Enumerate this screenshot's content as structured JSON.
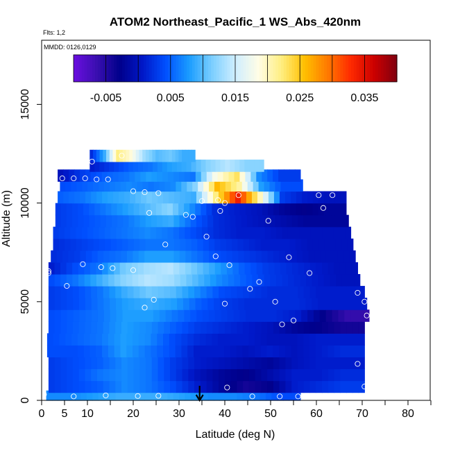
{
  "title": "ATOM2 Northeast_Pacific_1 WS_Abs_420nm",
  "flights_label": "Flts: 1,2",
  "dates_label": "MMDD: 0126,0129",
  "colors": {
    "palette": [
      "#6a0de0",
      "#3a0fb0",
      "#00008b",
      "#0018c8",
      "#0050ff",
      "#1a9cff",
      "#7ccfff",
      "#cfeeff",
      "#fffde6",
      "#ffee80",
      "#ffbf00",
      "#ff7a00",
      "#ff2a00",
      "#cc0000",
      "#800010"
    ]
  },
  "chart_data": {
    "type": "heatmap",
    "title": "ATOM2 Northeast_Pacific_1 WS_Abs_420nm",
    "xlabel": "Latitude (deg N)",
    "ylabel": "Altitude (m)",
    "xlim": [
      0,
      85
    ],
    "ylim": [
      0,
      17500
    ],
    "x_ticks": [
      0,
      5,
      10,
      20,
      30,
      40,
      50,
      60,
      70,
      80
    ],
    "x_tick_labels": [
      "0",
      "5",
      "10",
      "20",
      "30",
      "40",
      "50",
      "60",
      "70",
      "80"
    ],
    "y_ticks": [
      0,
      5000,
      10000,
      15000
    ],
    "y_tick_labels": [
      "0",
      "5000",
      "10000",
      "15000"
    ],
    "colorbar": {
      "range": [
        -0.01,
        0.04
      ],
      "ticks": [
        -0.005,
        0.005,
        0.015,
        0.025,
        0.035
      ],
      "tick_labels": [
        "-0.005",
        "0.005",
        "0.015",
        "0.025",
        "0.035"
      ]
    },
    "marker": {
      "x": 34.5,
      "y": 0,
      "label": "arrow"
    },
    "bands": [
      {
        "alt": 200,
        "x_start": 1.0,
        "x_end": 56.5,
        "values": [
          0.007,
          0.007,
          0.008,
          0.009,
          0.009,
          0.009,
          0.008,
          0.007,
          0.007,
          0.006,
          0.004
        ]
      },
      {
        "alt": 700,
        "x_start": 1.5,
        "x_end": 70.5,
        "values": [
          0.003,
          0.004,
          0.005,
          0.007,
          0.006,
          0.004,
          0.001,
          -0.002,
          -0.004,
          -0.003,
          0.001,
          0.002,
          0.003
        ]
      },
      {
        "alt": 1300,
        "x_start": 1.5,
        "x_end": 70.5,
        "values": [
          0.003,
          0.004,
          0.006,
          0.007,
          0.006,
          0.003,
          0.0,
          -0.002,
          -0.003,
          -0.001,
          0.001,
          0.001,
          0.002
        ]
      },
      {
        "alt": 1900,
        "x_start": 1.5,
        "x_end": 70.5,
        "values": [
          0.003,
          0.004,
          0.005,
          0.007,
          0.006,
          0.003,
          0.001,
          0.0,
          -0.001,
          -0.002,
          0.0,
          0.001,
          0.001
        ]
      },
      {
        "alt": 2500,
        "x_start": 1.2,
        "x_end": 70.5,
        "values": [
          0.004,
          0.004,
          0.005,
          0.008,
          0.006,
          0.004,
          0.001,
          0.001,
          0.0,
          0.001,
          0.0,
          0.001,
          0.002
        ]
      },
      {
        "alt": 3100,
        "x_start": 1.2,
        "x_end": 70.5,
        "values": [
          0.004,
          0.005,
          0.006,
          0.008,
          0.007,
          0.004,
          0.002,
          0.001,
          0.001,
          0.0,
          0.0,
          0.001,
          0.001
        ]
      },
      {
        "alt": 3700,
        "x_start": 1.5,
        "x_end": 70.5,
        "values": [
          0.004,
          0.005,
          0.006,
          0.008,
          0.007,
          0.005,
          0.003,
          0.002,
          0.001,
          0.0,
          -0.002,
          -0.003,
          -0.004
        ]
      },
      {
        "alt": 4300,
        "x_start": 1.5,
        "x_end": 71.5,
        "values": [
          0.004,
          0.005,
          0.006,
          0.008,
          0.008,
          0.006,
          0.004,
          0.003,
          0.002,
          0.002,
          0.001,
          -0.003,
          -0.006
        ]
      },
      {
        "alt": 4900,
        "x_start": 1.5,
        "x_end": 71.0,
        "values": [
          0.003,
          0.004,
          0.006,
          0.008,
          0.009,
          0.008,
          0.005,
          0.003,
          0.002,
          0.002,
          0.002,
          0.001,
          0.001
        ]
      },
      {
        "alt": 5500,
        "x_start": 1.5,
        "x_end": 70.5,
        "values": [
          0.003,
          0.004,
          0.006,
          0.009,
          0.011,
          0.01,
          0.007,
          0.004,
          0.003,
          0.002,
          0.002,
          0.001,
          0.001
        ]
      },
      {
        "alt": 6100,
        "x_start": 1.5,
        "x_end": 69.5,
        "values": [
          0.004,
          0.006,
          0.009,
          0.012,
          0.014,
          0.013,
          0.01,
          0.007,
          0.005,
          0.003,
          0.002,
          0.001,
          0.0
        ]
      },
      {
        "alt": 6700,
        "x_start": 1.5,
        "x_end": 69.0,
        "values": [
          0.001,
          0.004,
          0.006,
          0.011,
          0.013,
          0.014,
          0.011,
          0.008,
          0.005,
          0.003,
          0.002,
          0.001,
          0.0
        ]
      },
      {
        "alt": 7300,
        "x_start": 2.0,
        "x_end": 68.5,
        "values": [
          0.002,
          0.003,
          0.005,
          0.006,
          0.008,
          0.008,
          0.006,
          0.004,
          0.003,
          0.002,
          0.001,
          0.0,
          0.0
        ]
      },
      {
        "alt": 7900,
        "x_start": 2.5,
        "x_end": 68.0,
        "values": [
          0.002,
          0.003,
          0.004,
          0.005,
          0.006,
          0.006,
          0.005,
          0.003,
          0.002,
          0.001,
          0.001,
          0.0,
          0.0
        ]
      },
      {
        "alt": 8500,
        "x_start": 2.5,
        "x_end": 67.5,
        "values": [
          0.003,
          0.004,
          0.005,
          0.006,
          0.007,
          0.006,
          0.004,
          0.002,
          0.001,
          0.001,
          0.0,
          0.0,
          0.0
        ]
      },
      {
        "alt": 9100,
        "x_start": 3.0,
        "x_end": 67.0,
        "values": [
          0.003,
          0.004,
          0.005,
          0.006,
          0.008,
          0.009,
          0.005,
          0.002,
          0.001,
          0.0,
          -0.001,
          -0.002,
          -0.002
        ]
      },
      {
        "alt": 9700,
        "x_start": 3.0,
        "x_end": 66.5,
        "values": [
          0.003,
          0.004,
          0.006,
          0.008,
          0.01,
          0.012,
          0.007,
          0.002,
          0.001,
          0.0,
          -0.002,
          -0.003,
          -0.002
        ]
      },
      {
        "alt": 10300,
        "x_start": 3.5,
        "x_end": 66.5,
        "values": [
          0.005,
          0.006,
          0.008,
          0.009,
          0.011,
          0.01,
          0.009,
          0.022,
          0.034,
          0.02,
          0.003,
          0.001,
          0.0
        ]
      },
      {
        "alt": 10900,
        "x_start": 4.0,
        "x_end": 57.0,
        "values": [
          0.004,
          0.005,
          0.006,
          0.007,
          0.006,
          0.007,
          0.012,
          0.026,
          0.021,
          0.008,
          0.004
        ]
      },
      {
        "alt": 11400,
        "x_start": 3.5,
        "x_end": 56.5,
        "values": [
          0.0,
          0.003,
          0.005,
          0.006,
          0.008,
          0.007,
          0.006,
          0.018,
          0.023,
          0.007,
          0.003
        ]
      },
      {
        "alt": 11900,
        "x_start": 10.5,
        "x_end": 48.5,
        "values": [
          0.001,
          0.003,
          0.005,
          0.006,
          0.008,
          0.009,
          0.012,
          0.014,
          0.012
        ]
      },
      {
        "alt": 12400,
        "x_start": 10.5,
        "x_end": 33.5,
        "values": [
          0.002,
          0.009,
          0.022,
          0.019,
          0.013,
          0.01,
          0.011,
          0.009
        ]
      }
    ],
    "points": [
      {
        "x": 0.5,
        "y": 300
      },
      {
        "x": 7,
        "y": 200
      },
      {
        "x": 14,
        "y": 250
      },
      {
        "x": 21,
        "y": 220
      },
      {
        "x": 25.5,
        "y": 230
      },
      {
        "x": 46,
        "y": 200
      },
      {
        "x": 52,
        "y": 200
      },
      {
        "x": 56,
        "y": 200
      },
      {
        "x": 40.5,
        "y": 650
      },
      {
        "x": 70.5,
        "y": 700
      },
      {
        "x": 69,
        "y": 1850
      },
      {
        "x": 52.5,
        "y": 3850
      },
      {
        "x": 55,
        "y": 4050
      },
      {
        "x": 71,
        "y": 4300
      },
      {
        "x": 22.5,
        "y": 4700
      },
      {
        "x": 24.5,
        "y": 5100
      },
      {
        "x": 40,
        "y": 4900
      },
      {
        "x": 51,
        "y": 5000
      },
      {
        "x": 70.5,
        "y": 5000
      },
      {
        "x": 69,
        "y": 5450
      },
      {
        "x": 5.5,
        "y": 5800
      },
      {
        "x": 45.5,
        "y": 5650
      },
      {
        "x": 47.5,
        "y": 6000
      },
      {
        "x": 1.5,
        "y": 6450
      },
      {
        "x": 1.5,
        "y": 6550
      },
      {
        "x": 9,
        "y": 6900
      },
      {
        "x": 13,
        "y": 6750
      },
      {
        "x": 15.5,
        "y": 6700
      },
      {
        "x": 20,
        "y": 6600
      },
      {
        "x": 41,
        "y": 6850
      },
      {
        "x": 54,
        "y": 7250
      },
      {
        "x": 58.5,
        "y": 6450
      },
      {
        "x": 38,
        "y": 7300
      },
      {
        "x": 27,
        "y": 7900
      },
      {
        "x": 36,
        "y": 8300
      },
      {
        "x": 49.5,
        "y": 9100
      },
      {
        "x": 23.5,
        "y": 9500
      },
      {
        "x": 31.5,
        "y": 9400
      },
      {
        "x": 33,
        "y": 9300
      },
      {
        "x": 39,
        "y": 9600
      },
      {
        "x": 35,
        "y": 10100
      },
      {
        "x": 38.5,
        "y": 10150
      },
      {
        "x": 40,
        "y": 10000
      },
      {
        "x": 43,
        "y": 10400
      },
      {
        "x": 61.5,
        "y": 9750
      },
      {
        "x": 60.5,
        "y": 10400
      },
      {
        "x": 63.5,
        "y": 10400
      },
      {
        "x": 66,
        "y": 10950
      },
      {
        "x": 20,
        "y": 10600
      },
      {
        "x": 22.5,
        "y": 10550
      },
      {
        "x": 25.5,
        "y": 10500
      },
      {
        "x": 4.5,
        "y": 11250
      },
      {
        "x": 7,
        "y": 11250
      },
      {
        "x": 9.5,
        "y": 11250
      },
      {
        "x": 12,
        "y": 11200
      },
      {
        "x": 14.5,
        "y": 11200
      },
      {
        "x": 11,
        "y": 12100
      },
      {
        "x": 17.5,
        "y": 12400
      }
    ]
  }
}
